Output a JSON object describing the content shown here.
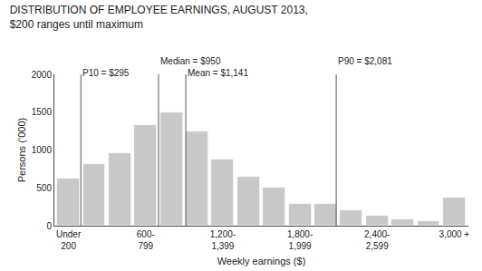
{
  "chart_data": {
    "type": "bar",
    "title": "DISTRIBUTION OF EMPLOYEE EARNINGS, AUGUST 2013,",
    "subtitle": "$200 ranges until maximum",
    "x_label": "Weekly earnings ($)",
    "y_label": "Persons (’000)",
    "categories": [
      "Under\n200",
      null,
      null,
      "600-\n799",
      null,
      null,
      "1,200-\n1,399",
      null,
      null,
      "1,800-\n1,999",
      null,
      null,
      "2,400-\n2,599",
      null,
      null,
      "3,000 +"
    ],
    "values": [
      620,
      820,
      960,
      1330,
      1500,
      1250,
      880,
      650,
      500,
      290,
      290,
      200,
      130,
      85,
      65,
      370
    ],
    "color": "#c8c8c8",
    "ylim": [
      0,
      2000
    ],
    "yticks": [
      0,
      500,
      1000,
      1500,
      2000
    ],
    "grid": false,
    "annotations": [
      {
        "x": 0.48,
        "y": 1930,
        "text": "P10 = $295"
      },
      {
        "x": 3.5,
        "y": 1930,
        "text": "Median = $950"
      },
      {
        "x": 4.56,
        "y": 1930,
        "text": "Mean = $1,141"
      },
      {
        "x": 10.41,
        "y": 1930,
        "text": "P90 = $2,081"
      }
    ]
  }
}
